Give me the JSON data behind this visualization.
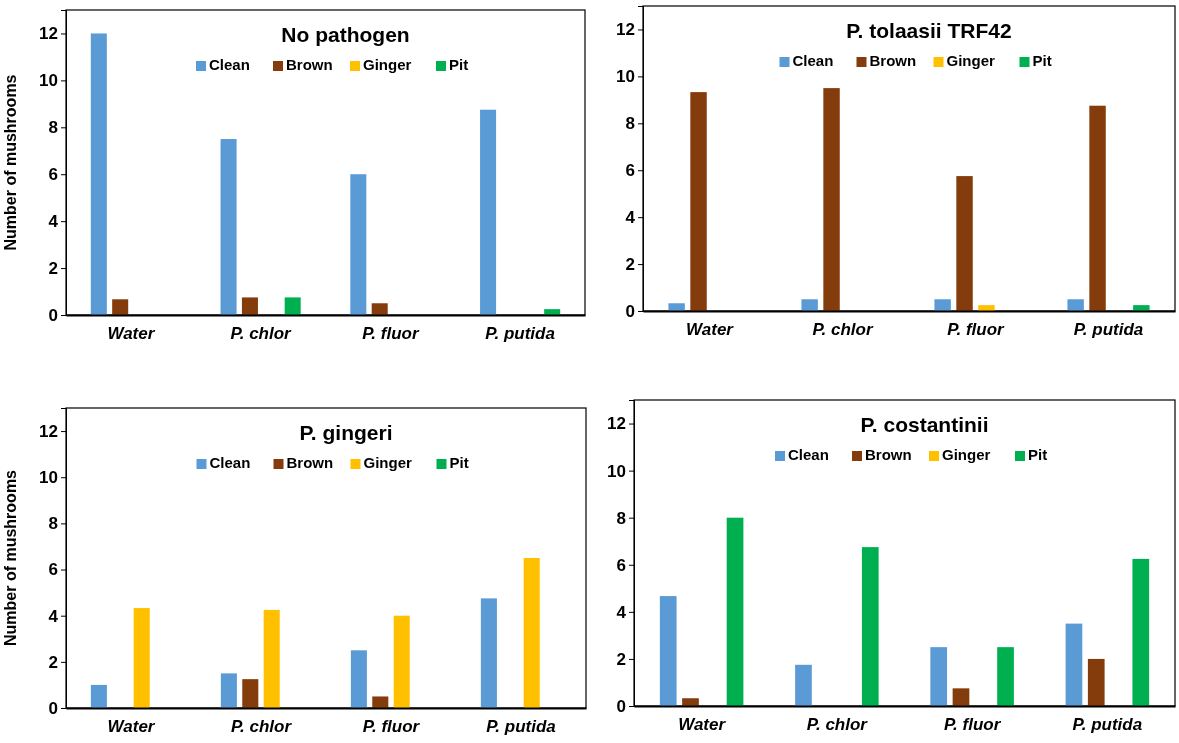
{
  "chart_data": [
    {
      "type": "bar",
      "title": "No pathogen",
      "ylabel": "Number of mushrooms",
      "categories": [
        "Water",
        "P. chlor",
        "P. fluor",
        "P. putida"
      ],
      "ylim": [
        0,
        13
      ],
      "yticks": [
        0,
        2,
        4,
        6,
        8,
        10,
        12
      ],
      "grid": false,
      "legend": "top",
      "series": [
        {
          "name": "Clean",
          "color": "#5b9bd5",
          "values": [
            12,
            7.5,
            6,
            8.75
          ]
        },
        {
          "name": "Brown",
          "color": "#843c0c",
          "values": [
            0.67,
            0.75,
            0.5,
            0
          ]
        },
        {
          "name": "Ginger",
          "color": "#ffc000",
          "values": [
            0,
            0,
            0,
            0
          ]
        },
        {
          "name": "Pit",
          "color": "#00b050",
          "values": [
            0,
            0.75,
            0,
            0.25
          ]
        }
      ]
    },
    {
      "type": "bar",
      "title": "P. tolaasii TRF42",
      "categories": [
        "Water",
        "P. chlor",
        "P. fluor",
        "P. putida"
      ],
      "ylim": [
        0,
        13
      ],
      "yticks": [
        0,
        2,
        4,
        6,
        8,
        10,
        12
      ],
      "grid": false,
      "legend": "top",
      "series": [
        {
          "name": "Clean",
          "color": "#5b9bd5",
          "values": [
            0.33,
            0.5,
            0.5,
            0.5
          ]
        },
        {
          "name": "Brown",
          "color": "#843c0c",
          "values": [
            9.33,
            9.5,
            5.75,
            8.75
          ]
        },
        {
          "name": "Ginger",
          "color": "#ffc000",
          "values": [
            0,
            0,
            0.25,
            0
          ]
        },
        {
          "name": "Pit",
          "color": "#00b050",
          "values": [
            0,
            0,
            0,
            0.25
          ]
        }
      ]
    },
    {
      "type": "bar",
      "title": "P. gingeri",
      "ylabel": "Number of mushrooms",
      "categories": [
        "Water",
        "P. chlor",
        "P. fluor",
        "P. putida"
      ],
      "ylim": [
        0,
        13
      ],
      "yticks": [
        0,
        2,
        4,
        6,
        8,
        10,
        12
      ],
      "grid": false,
      "legend": "top",
      "series": [
        {
          "name": "Clean",
          "color": "#5b9bd5",
          "values": [
            1,
            1.5,
            2.5,
            4.75
          ]
        },
        {
          "name": "Brown",
          "color": "#843c0c",
          "values": [
            0,
            1.25,
            0.5,
            0
          ]
        },
        {
          "name": "Ginger",
          "color": "#ffc000",
          "values": [
            4.33,
            4.25,
            4,
            6.5
          ]
        },
        {
          "name": "Pit",
          "color": "#00b050",
          "values": [
            0,
            0,
            0,
            0
          ]
        }
      ]
    },
    {
      "type": "bar",
      "title": "P. costantinii",
      "categories": [
        "Water",
        "P. chlor",
        "P. fluor",
        "P. putida"
      ],
      "ylim": [
        0,
        13
      ],
      "yticks": [
        0,
        2,
        4,
        6,
        8,
        10,
        12
      ],
      "grid": false,
      "legend": "top",
      "series": [
        {
          "name": "Clean",
          "color": "#5b9bd5",
          "values": [
            4.67,
            1.75,
            2.5,
            3.5
          ]
        },
        {
          "name": "Brown",
          "color": "#843c0c",
          "values": [
            0.33,
            0,
            0.75,
            2
          ]
        },
        {
          "name": "Ginger",
          "color": "#ffc000",
          "values": [
            0,
            0,
            0,
            0
          ]
        },
        {
          "name": "Pit",
          "color": "#00b050",
          "values": [
            8,
            6.75,
            2.5,
            6.25
          ]
        }
      ]
    }
  ]
}
